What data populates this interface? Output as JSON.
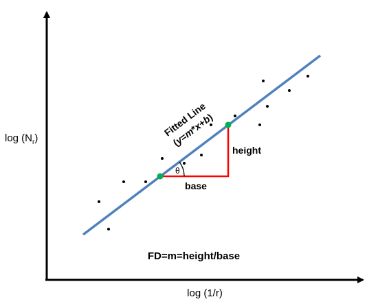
{
  "diagram": {
    "y_axis_label": "log (N",
    "y_axis_label_subscript": "r",
    "y_axis_label_close": ")",
    "x_axis_label": "log (1/r)",
    "fitted_line_label": "Fitted Line",
    "equation_open": "(",
    "equation_y": "y",
    "equation_eq": "=",
    "equation_m": "m",
    "equation_times": "*",
    "equation_x": "x",
    "equation_plus": "+",
    "equation_b": "b",
    "equation_close": ")",
    "theta_label": "θ",
    "height_label": "height",
    "base_label": "base",
    "formula": "FD=m=height/base",
    "colors": {
      "axis": "#000000",
      "fitted_line": "#4f81bd",
      "triangle": "#ff0000",
      "fit_points": "#00b050",
      "scatter": "#000000"
    }
  }
}
